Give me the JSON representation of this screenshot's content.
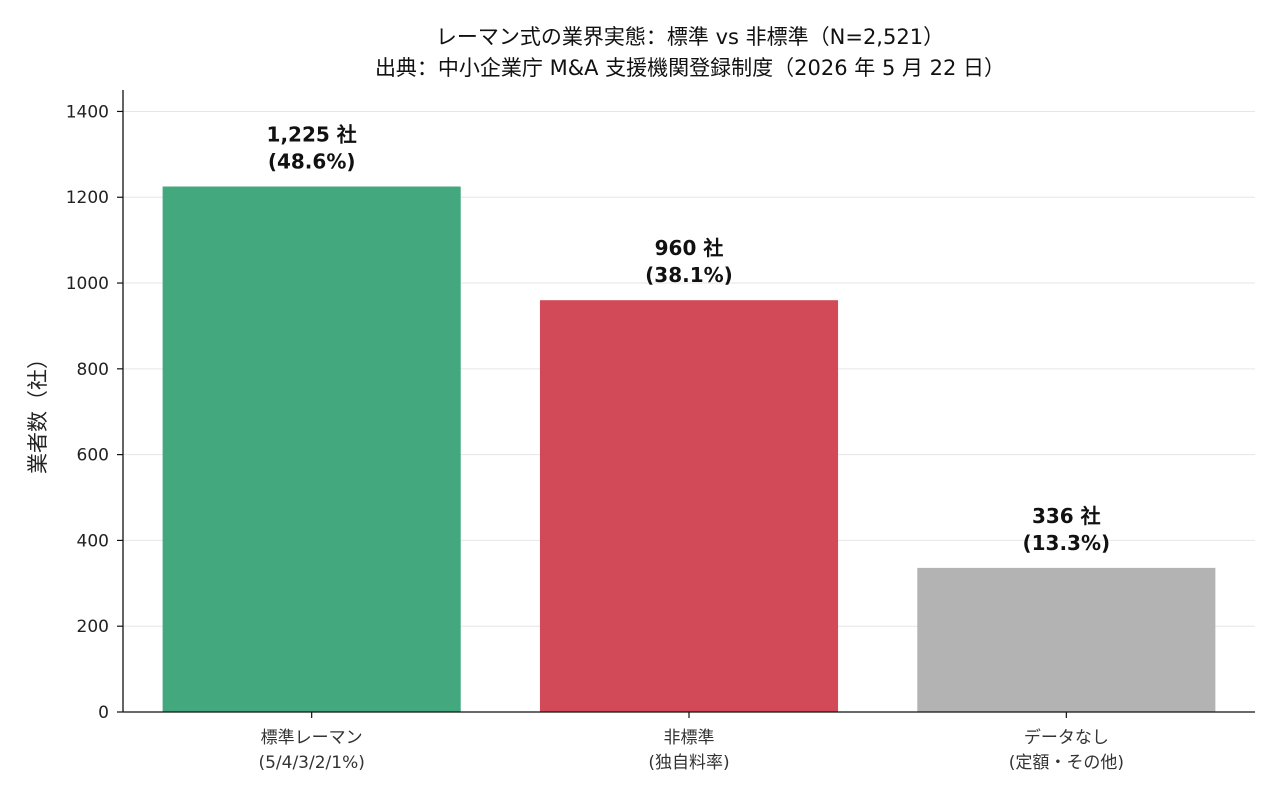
{
  "chart_data": {
    "type": "bar",
    "title": "レーマン式の業界実態：標準 vs 非標準（N=2,521）",
    "subtitle": "出典：中小企業庁 M&A 支援機関登録制度（2026 年 5 月 22 日）",
    "xlabel": "",
    "ylabel": "業者数（社）",
    "ylim": [
      0,
      1450
    ],
    "yticks": [
      0,
      200,
      400,
      600,
      800,
      1000,
      1200,
      1400
    ],
    "grid": "y",
    "categories": [
      [
        "標準レーマン",
        "(5/4/3/2/1%)"
      ],
      [
        "非標準",
        "(独自料率)"
      ],
      [
        "データなし",
        "(定額・その他)"
      ]
    ],
    "values": [
      1225,
      960,
      336
    ],
    "data_labels": [
      [
        "1,225 社",
        "(48.6%)"
      ],
      [
        "960 社",
        "(38.1%)"
      ],
      [
        "336 社",
        "(13.3%)"
      ]
    ],
    "colors": [
      "#43a87d",
      "#d24a57",
      "#b3b3b3"
    ]
  }
}
